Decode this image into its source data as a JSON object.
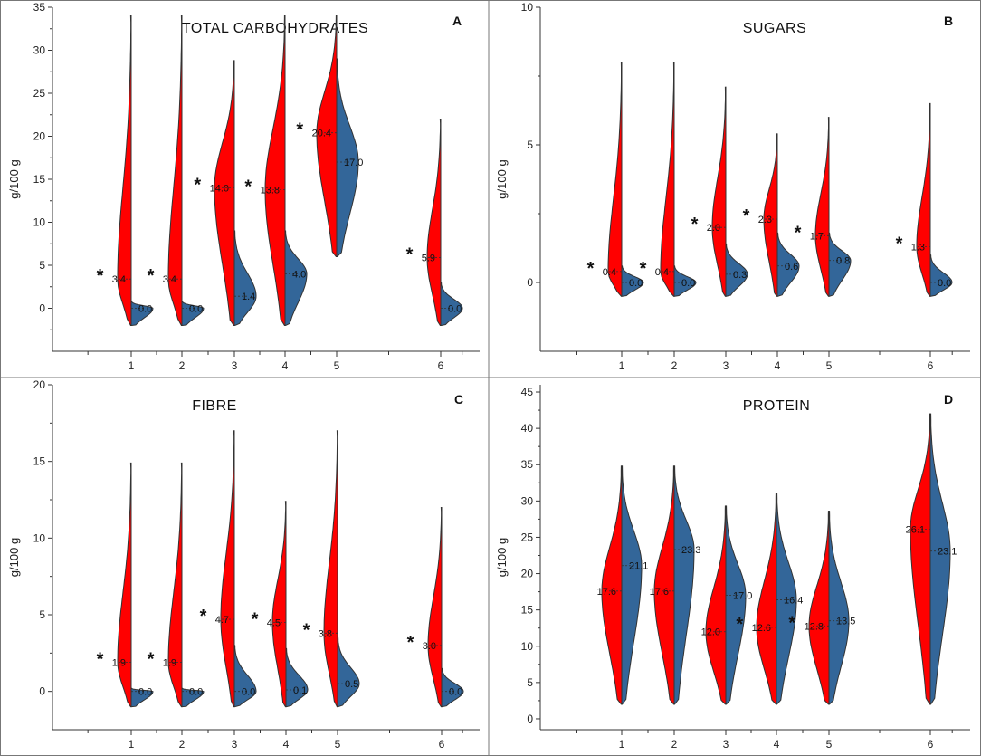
{
  "figure": {
    "y_label": "g/100 g",
    "colors": {
      "red": "#ff0000",
      "blue": "#336699",
      "outline": "#333333",
      "axis": "#333333",
      "border": "#777777"
    }
  },
  "chart_data": [
    {
      "type": "split-violin",
      "panel": "A",
      "title": "TOTAL CARBOHYDRATES",
      "ylabel": "g/100 g",
      "ylim": [
        -5,
        35
      ],
      "ytick_labels": [
        "0",
        "5",
        "10",
        "15",
        "20",
        "25",
        "30",
        "35"
      ],
      "ytick_values": [
        0,
        5,
        10,
        15,
        20,
        25,
        30,
        35
      ],
      "categories": [
        "1",
        "2",
        "3",
        "4",
        "5",
        "6"
      ],
      "violins": [
        {
          "category": "1",
          "left": {
            "min": -2,
            "max": 34,
            "median": 3.4,
            "label": "3.4",
            "star": true
          },
          "right": {
            "min": -2,
            "max": 0.8,
            "median": 0.0,
            "label": "0.0"
          }
        },
        {
          "category": "2",
          "left": {
            "min": -2,
            "max": 34,
            "median": 3.4,
            "label": "3.4",
            "star": true
          },
          "right": {
            "min": -2,
            "max": 0.8,
            "median": 0.0,
            "label": "0.0"
          }
        },
        {
          "category": "3",
          "left": {
            "min": -2,
            "max": 28.8,
            "median": 14.0,
            "label": "14.0",
            "star": true
          },
          "right": {
            "min": -2,
            "max": 9,
            "median": 1.4,
            "label": "1.4"
          }
        },
        {
          "category": "4",
          "left": {
            "min": -2,
            "max": 34,
            "median": 13.8,
            "label": "13.8",
            "star": true
          },
          "right": {
            "min": -2,
            "max": 9,
            "median": 4.0,
            "label": "4.0"
          }
        },
        {
          "category": "5",
          "left": {
            "min": 6,
            "max": 34,
            "median": 20.4,
            "label": "20.4",
            "star": true
          },
          "right": {
            "min": 6,
            "max": 29,
            "median": 17.0,
            "label": "17.0"
          }
        },
        {
          "category": "6",
          "left": {
            "min": -2,
            "max": 22,
            "median": 5.9,
            "label": "5.9",
            "star": true
          },
          "right": {
            "min": -2,
            "max": 3,
            "median": 0.0,
            "label": "0.0"
          }
        }
      ]
    },
    {
      "type": "split-violin",
      "panel": "B",
      "title": "SUGARS",
      "ylabel": "g/100 g",
      "ylim": [
        -2.5,
        10
      ],
      "ytick_labels": [
        "0",
        "5",
        "10"
      ],
      "ytick_values": [
        0,
        5,
        10
      ],
      "categories": [
        "1",
        "2",
        "3",
        "4",
        "5",
        "6"
      ],
      "violins": [
        {
          "category": "1",
          "left": {
            "min": -0.5,
            "max": 8,
            "median": 0.4,
            "label": "0.4",
            "star": true
          },
          "right": {
            "min": -0.5,
            "max": 0.6,
            "median": 0.0,
            "label": "0.0"
          }
        },
        {
          "category": "2",
          "left": {
            "min": -0.5,
            "max": 8,
            "median": 0.4,
            "label": "0.4",
            "star": true
          },
          "right": {
            "min": -0.5,
            "max": 0.6,
            "median": 0.0,
            "label": "0.0"
          }
        },
        {
          "category": "3",
          "left": {
            "min": -0.5,
            "max": 7.1,
            "median": 2.0,
            "label": "2.0",
            "star": true
          },
          "right": {
            "min": -0.5,
            "max": 1.4,
            "median": 0.3,
            "label": "0.3"
          }
        },
        {
          "category": "4",
          "left": {
            "min": -0.5,
            "max": 5.4,
            "median": 2.3,
            "label": "2.3",
            "star": true
          },
          "right": {
            "min": -0.5,
            "max": 1.8,
            "median": 0.6,
            "label": "0.6"
          }
        },
        {
          "category": "5",
          "left": {
            "min": -0.5,
            "max": 6,
            "median": 1.7,
            "label": "1.7",
            "star": true
          },
          "right": {
            "min": -0.5,
            "max": 1.8,
            "median": 0.8,
            "label": "0.8"
          }
        },
        {
          "category": "6",
          "left": {
            "min": -0.5,
            "max": 6.5,
            "median": 1.3,
            "label": "1.3",
            "star": true
          },
          "right": {
            "min": -0.5,
            "max": 1.0,
            "median": 0.0,
            "label": "0.0"
          }
        }
      ]
    },
    {
      "type": "split-violin",
      "panel": "C",
      "title": "FIBRE",
      "ylabel": "g/100 g",
      "ylim": [
        -2.5,
        20
      ],
      "ytick_labels": [
        "0",
        "5",
        "10",
        "15",
        "20"
      ],
      "ytick_values": [
        0,
        5,
        10,
        15,
        20
      ],
      "categories": [
        "1",
        "2",
        "3",
        "4",
        "5",
        "6"
      ],
      "violins": [
        {
          "category": "1",
          "left": {
            "min": -1,
            "max": 14.9,
            "median": 1.9,
            "label": "1.9",
            "star": true
          },
          "right": {
            "min": -1,
            "max": 0.2,
            "median": 0.0,
            "label": "0.0"
          }
        },
        {
          "category": "2",
          "left": {
            "min": -1,
            "max": 14.9,
            "median": 1.9,
            "label": "1.9",
            "star": true
          },
          "right": {
            "min": -1,
            "max": 0.2,
            "median": 0.0,
            "label": "0.0"
          }
        },
        {
          "category": "3",
          "left": {
            "min": -1,
            "max": 17,
            "median": 4.7,
            "label": "4.7",
            "star": true
          },
          "right": {
            "min": -1,
            "max": 3,
            "median": 0.0,
            "label": "0.0"
          }
        },
        {
          "category": "4",
          "left": {
            "min": -1,
            "max": 12.4,
            "median": 4.5,
            "label": "4.5",
            "star": true
          },
          "right": {
            "min": -1,
            "max": 2.8,
            "median": 0.1,
            "label": "0.1"
          }
        },
        {
          "category": "5",
          "left": {
            "min": -1,
            "max": 17,
            "median": 3.8,
            "label": "3.8",
            "star": true
          },
          "right": {
            "min": -1,
            "max": 3.5,
            "median": 0.5,
            "label": "0.5"
          }
        },
        {
          "category": "6",
          "left": {
            "min": -1,
            "max": 12,
            "median": 3.0,
            "label": "3.0",
            "star": true
          },
          "right": {
            "min": -1,
            "max": 1.5,
            "median": 0.0,
            "label": "0.0"
          }
        }
      ]
    },
    {
      "type": "split-violin",
      "panel": "D",
      "title": "PROTEIN",
      "ylabel": "g/100 g",
      "ylim": [
        -1.5,
        46
      ],
      "ytick_labels": [
        "0",
        "5",
        "10",
        "15",
        "20",
        "25",
        "30",
        "35",
        "40",
        "45"
      ],
      "ytick_values": [
        0,
        5,
        10,
        15,
        20,
        25,
        30,
        35,
        40,
        45
      ],
      "categories": [
        "1",
        "2",
        "3",
        "4",
        "5",
        "6"
      ],
      "violins": [
        {
          "category": "1",
          "left": {
            "min": 2,
            "max": 34.8,
            "median": 17.6,
            "label": "17.6",
            "star": false
          },
          "right": {
            "min": 2,
            "max": 34.8,
            "median": 21.1,
            "label": "21.1"
          }
        },
        {
          "category": "2",
          "left": {
            "min": 2,
            "max": 34.8,
            "median": 17.6,
            "label": "17.6",
            "star": false
          },
          "right": {
            "min": 2,
            "max": 34.8,
            "median": 23.3,
            "label": "23.3"
          }
        },
        {
          "category": "3",
          "left": {
            "min": 2,
            "max": 29.3,
            "median": 12.0,
            "label": "12.0",
            "star": false
          },
          "right": {
            "min": 2,
            "max": 29.3,
            "median": 17.0,
            "label": "17.0"
          }
        },
        {
          "category": "4",
          "left": {
            "min": 2,
            "max": 31,
            "median": 12.6,
            "label": "12.6",
            "star": true
          },
          "right": {
            "min": 2,
            "max": 31,
            "median": 16.4,
            "label": "16.4"
          }
        },
        {
          "category": "5",
          "left": {
            "min": 2,
            "max": 28.6,
            "median": 12.8,
            "label": "12.8",
            "star": true
          },
          "right": {
            "min": 2,
            "max": 28.6,
            "median": 13.5,
            "label": "13.5"
          }
        },
        {
          "category": "6",
          "left": {
            "min": 2,
            "max": 42,
            "median": 26.1,
            "label": "26.1",
            "star": false
          },
          "right": {
            "min": 2,
            "max": 42,
            "median": 23.1,
            "label": "23.1"
          }
        }
      ]
    }
  ]
}
